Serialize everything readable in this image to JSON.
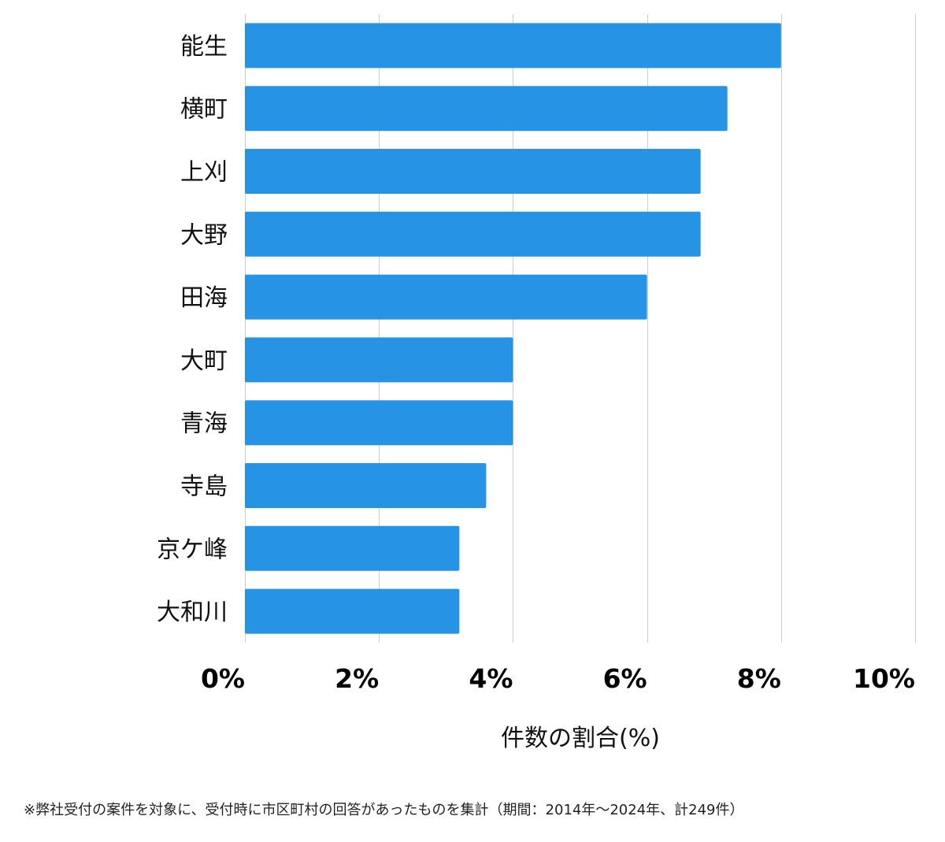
{
  "chart_data": {
    "type": "bar",
    "orientation": "horizontal",
    "categories": [
      "能生",
      "横町",
      "上刈",
      "大野",
      "田海",
      "大町",
      "青海",
      "寺島",
      "京ケ峰",
      "大和川"
    ],
    "values": [
      8.0,
      7.2,
      6.8,
      6.8,
      6.0,
      4.0,
      4.0,
      3.6,
      3.2,
      3.2
    ],
    "xlim": [
      0,
      10
    ],
    "xticks": [
      0,
      2,
      4,
      6,
      8,
      10
    ],
    "xtick_labels": [
      "0%",
      "2%",
      "4%",
      "6%",
      "8%",
      "10%"
    ],
    "xlabel": "件数の割合(%)",
    "ylabel": "",
    "title": "",
    "grid": true,
    "bar_color": "#2793e5"
  },
  "footnote": "※弊社受付の案件を対象に、受付時に市区町村の回答があったものを集計（期間：2014年～2024年、計249件）"
}
